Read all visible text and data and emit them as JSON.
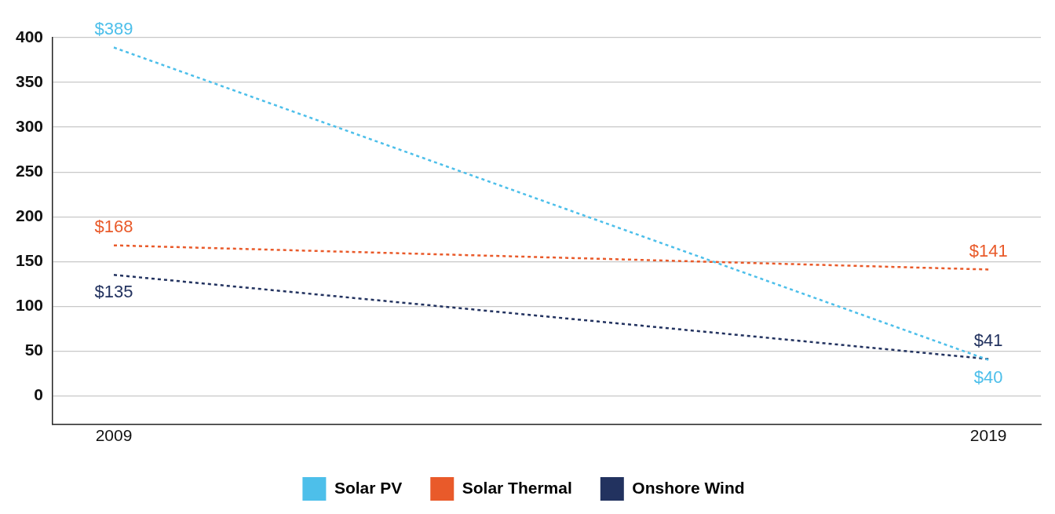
{
  "chart_data": {
    "type": "line",
    "x": [
      2009,
      2019
    ],
    "xlim": [
      2008.3,
      2019.6
    ],
    "xticks": [
      2009,
      2019
    ],
    "ylim": [
      -32,
      400
    ],
    "yticks": [
      0,
      50,
      100,
      150,
      200,
      250,
      300,
      350,
      400
    ],
    "grid": "y",
    "legend": "bottom",
    "marker": "none",
    "line_style": "dotted",
    "series": [
      {
        "name": "Solar PV",
        "color": "#4dbfea",
        "values": [
          389,
          40
        ],
        "value_labels": [
          "$389",
          "$40"
        ]
      },
      {
        "name": "Solar Thermal",
        "color": "#e95a2a",
        "values": [
          168,
          141
        ],
        "value_labels": [
          "$168",
          "$141"
        ]
      },
      {
        "name": "Onshore Wind",
        "color": "#22325f",
        "values": [
          135,
          41
        ],
        "value_labels": [
          "$135",
          "$41"
        ]
      }
    ]
  }
}
